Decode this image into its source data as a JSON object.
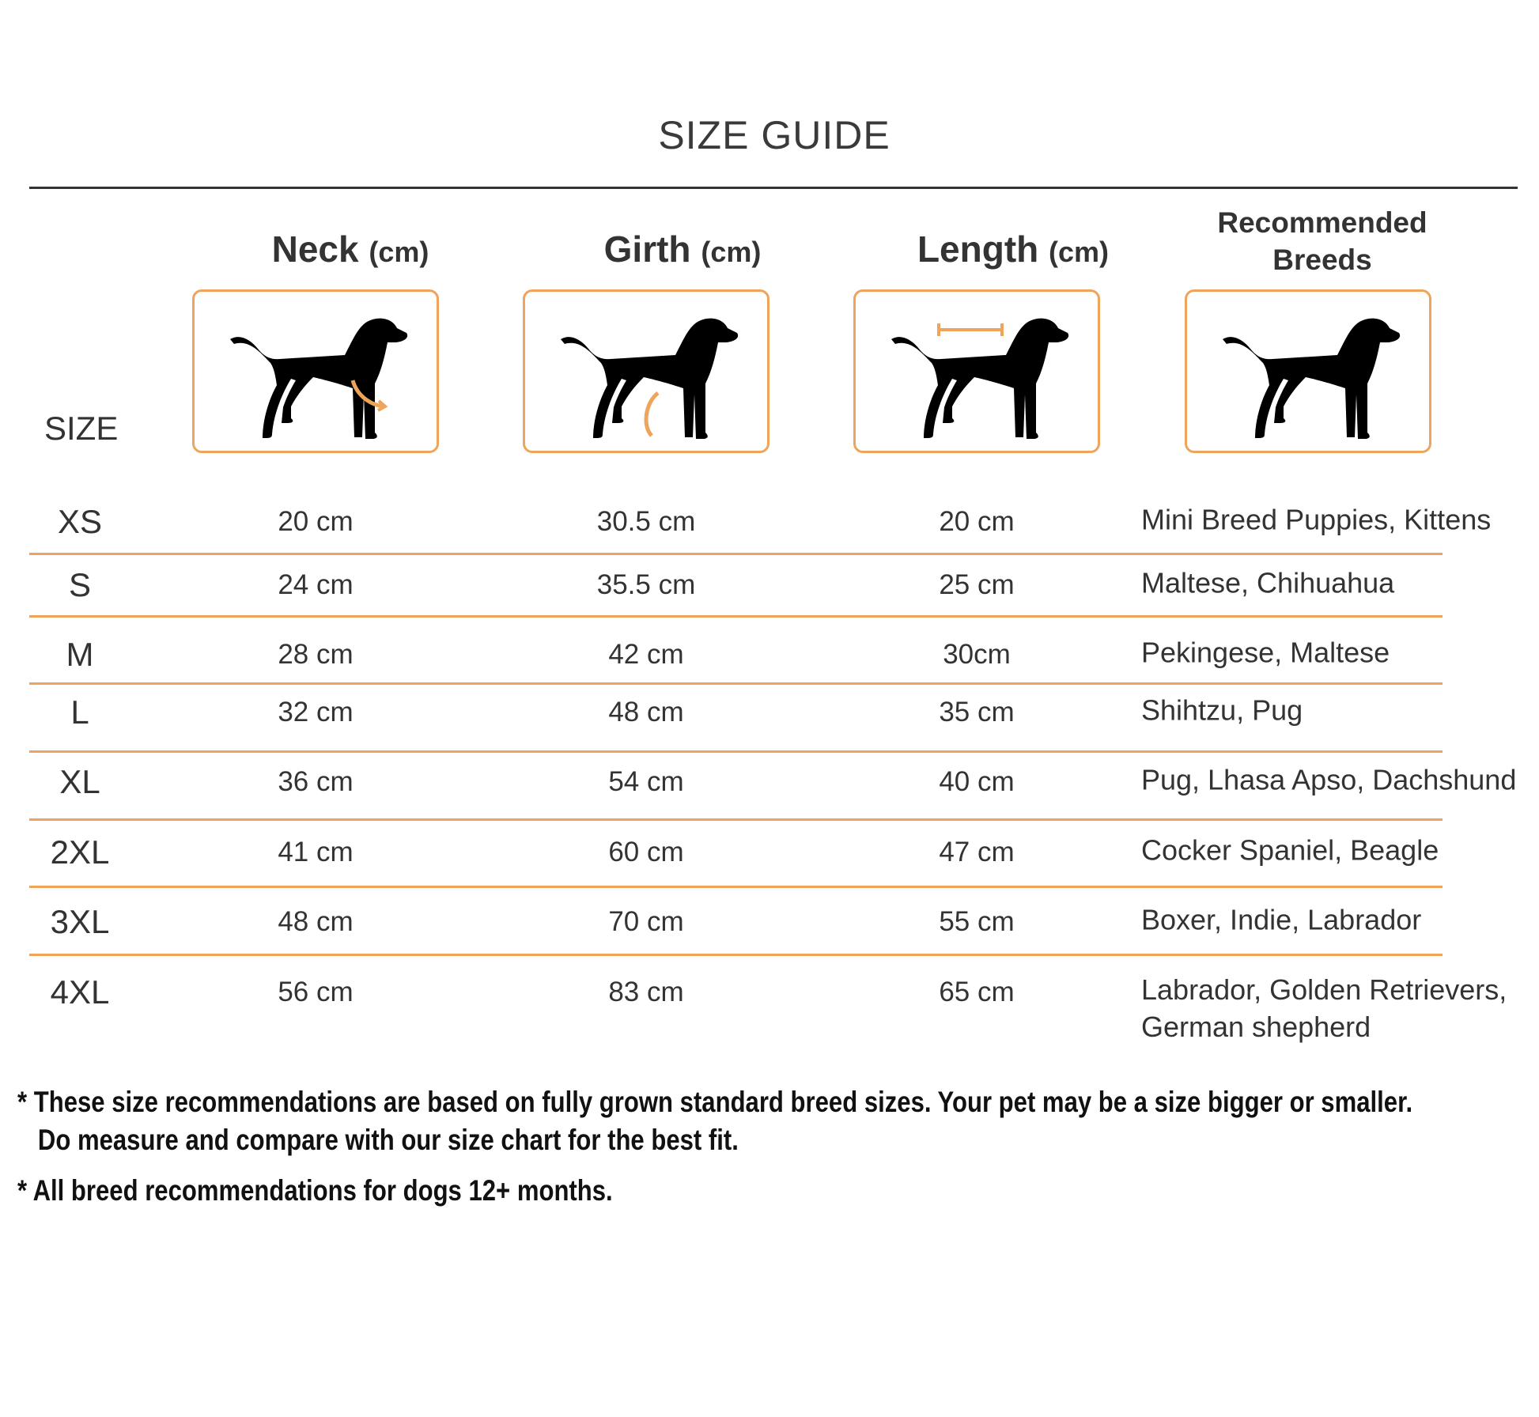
{
  "title": "SIZE GUIDE",
  "headers": {
    "neck": {
      "label": "Neck",
      "unit": "(cm)"
    },
    "girth": {
      "label": "Girth",
      "unit": "(cm)"
    },
    "length": {
      "label": "Length",
      "unit": "(cm)"
    },
    "breeds": "Recommended Breeds"
  },
  "size_label": "SIZE",
  "icons": [
    "dog-neck-measure-icon",
    "dog-girth-measure-icon",
    "dog-length-measure-icon",
    "dog-icon"
  ],
  "colors": {
    "accent": "#eea45a",
    "text": "#333333"
  },
  "rows": [
    {
      "size": "XS",
      "neck": "20 cm",
      "girth": "30.5 cm",
      "length": "20 cm",
      "breeds": "Mini Breed Puppies, Kittens"
    },
    {
      "size": "S",
      "neck": "24 cm",
      "girth": "35.5 cm",
      "length": "25 cm",
      "breeds": "Maltese, Chihuahua"
    },
    {
      "size": "M",
      "neck": "28 cm",
      "girth": "42 cm",
      "length": "30cm",
      "breeds": "Pekingese, Maltese"
    },
    {
      "size": "L",
      "neck": "32 cm",
      "girth": "48 cm",
      "length": "35 cm",
      "breeds": "Shihtzu, Pug"
    },
    {
      "size": "XL",
      "neck": "36 cm",
      "girth": "54 cm",
      "length": "40 cm",
      "breeds": "Pug, Lhasa Apso, Dachshund"
    },
    {
      "size": "2XL",
      "neck": "41 cm",
      "girth": "60 cm",
      "length": "47 cm",
      "breeds": "Cocker Spaniel, Beagle"
    },
    {
      "size": "3XL",
      "neck": "48 cm",
      "girth": "70 cm",
      "length": "55 cm",
      "breeds": "Boxer, Indie, Labrador"
    },
    {
      "size": "4XL",
      "neck": "56 cm",
      "girth": "83 cm",
      "length": "65 cm",
      "breeds": "Labrador, Golden Retrievers,\nGerman shepherd"
    }
  ],
  "notes": [
    "* These size recommendations are based on fully grown standard breed sizes. Your pet may be a size bigger or smaller.",
    "   Do measure and compare with our size chart for the best fit.",
    "* All breed recommendations for dogs 12+ months."
  ]
}
